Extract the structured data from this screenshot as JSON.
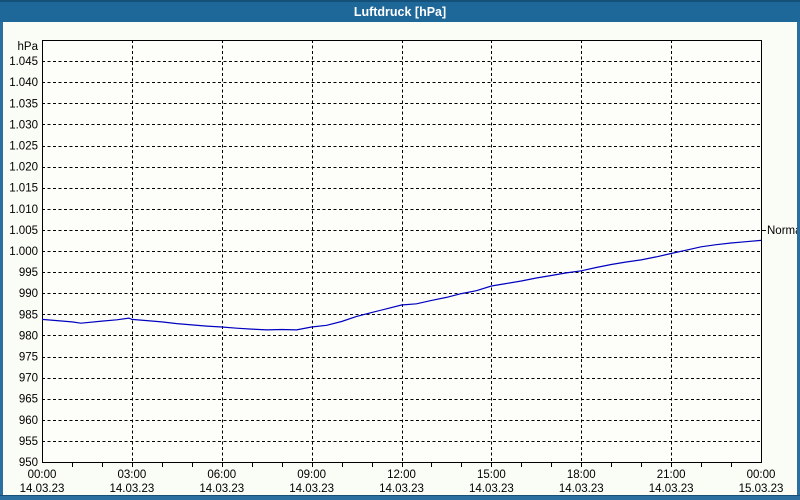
{
  "window": {
    "title": "Luftdruck [hPa]"
  },
  "chart_data": {
    "type": "line",
    "title": "Luftdruck [hPa]",
    "ylabel": "hPa",
    "ylim": [
      950,
      1050
    ],
    "y_grid_step": 5,
    "y_tick_labels": [
      {
        "value": 1045,
        "label": "1.045"
      },
      {
        "value": 1040,
        "label": "1.040"
      },
      {
        "value": 1035,
        "label": "1.035"
      },
      {
        "value": 1030,
        "label": "1.030"
      },
      {
        "value": 1025,
        "label": "1.025"
      },
      {
        "value": 1020,
        "label": "1.020"
      },
      {
        "value": 1015,
        "label": "1.015"
      },
      {
        "value": 1010,
        "label": "1.010"
      },
      {
        "value": 1005,
        "label": "1.005"
      },
      {
        "value": 1000,
        "label": "1.000"
      },
      {
        "value": 995,
        "label": "995"
      },
      {
        "value": 990,
        "label": "990"
      },
      {
        "value": 985,
        "label": "985"
      },
      {
        "value": 980,
        "label": "980"
      },
      {
        "value": 975,
        "label": "975"
      },
      {
        "value": 970,
        "label": "970"
      },
      {
        "value": 965,
        "label": "965"
      },
      {
        "value": 960,
        "label": "960"
      },
      {
        "value": 955,
        "label": "955"
      },
      {
        "value": 950,
        "label": "950"
      }
    ],
    "x_unit": "hours",
    "xlim": [
      0,
      24
    ],
    "x_grid_step_hours": 3,
    "x_minor_tick_hours": 1,
    "x_ticks": [
      {
        "hour": 0,
        "time": "00:00",
        "date": "14.03.23"
      },
      {
        "hour": 3,
        "time": "03:00",
        "date": "14.03.23"
      },
      {
        "hour": 6,
        "time": "06:00",
        "date": "14.03.23"
      },
      {
        "hour": 9,
        "time": "09:00",
        "date": "14.03.23"
      },
      {
        "hour": 12,
        "time": "12:00",
        "date": "14.03.23"
      },
      {
        "hour": 15,
        "time": "15:00",
        "date": "14.03.23"
      },
      {
        "hour": 18,
        "time": "18:00",
        "date": "14.03.23"
      },
      {
        "hour": 21,
        "time": "21:00",
        "date": "14.03.23"
      },
      {
        "hour": 24,
        "time": "00:00",
        "date": "15.03.23"
      }
    ],
    "grid": true,
    "legend_position": "none",
    "series": [
      {
        "name": "Luftdruck",
        "color": "#0000c0",
        "points": [
          [
            0,
            983.8
          ],
          [
            0.5,
            983.5
          ],
          [
            1,
            983.2
          ],
          [
            1.3,
            982.9
          ],
          [
            2,
            983.4
          ],
          [
            2.5,
            983.7
          ],
          [
            2.9,
            984.1
          ],
          [
            3,
            983.8
          ],
          [
            3.5,
            983.5
          ],
          [
            4,
            983.2
          ],
          [
            4.5,
            982.8
          ],
          [
            5,
            982.5
          ],
          [
            5.5,
            982.2
          ],
          [
            6,
            982.0
          ],
          [
            6.5,
            981.7
          ],
          [
            7,
            981.5
          ],
          [
            7.5,
            981.3
          ],
          [
            8,
            981.4
          ],
          [
            8.5,
            981.3
          ],
          [
            9,
            982.0
          ],
          [
            9.5,
            982.4
          ],
          [
            10,
            983.3
          ],
          [
            10.5,
            984.5
          ],
          [
            11,
            985.4
          ],
          [
            11.5,
            986.3
          ],
          [
            12,
            987.2
          ],
          [
            12.5,
            987.5
          ],
          [
            13,
            988.3
          ],
          [
            13.5,
            989.0
          ],
          [
            14,
            989.9
          ],
          [
            14.5,
            990.6
          ],
          [
            15,
            991.7
          ],
          [
            15.5,
            992.3
          ],
          [
            16,
            992.9
          ],
          [
            16.5,
            993.6
          ],
          [
            17,
            994.2
          ],
          [
            17.5,
            994.8
          ],
          [
            18,
            995.3
          ],
          [
            18.5,
            996.1
          ],
          [
            19,
            996.8
          ],
          [
            19.5,
            997.4
          ],
          [
            20,
            997.9
          ],
          [
            20.5,
            998.6
          ],
          [
            21,
            999.4
          ],
          [
            21.5,
            1000.2
          ],
          [
            22,
            1001.0
          ],
          [
            22.5,
            1001.5
          ],
          [
            23,
            1001.9
          ],
          [
            23.5,
            1002.2
          ],
          [
            24,
            1002.5
          ]
        ]
      }
    ],
    "annotations": [
      {
        "label": "Normal",
        "y": 1005,
        "side": "right"
      }
    ]
  },
  "colors": {
    "titlebar_bg": "#1e6799",
    "titlebar_top_edge": "#155078",
    "window_border": "#2a6f9f",
    "content_bg": "#fafcf6",
    "plot_bg": "#fdfefa",
    "grid": "#000000",
    "axis": "#000000",
    "text": "#000000",
    "curve": "#0000c0",
    "title_text": "#ffffff"
  }
}
